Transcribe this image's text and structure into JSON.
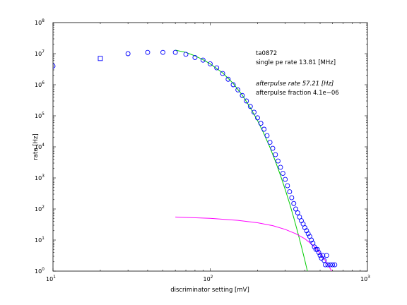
{
  "chart_data": {
    "type": "scatter",
    "title": "",
    "xlabel": "discriminator setting [mV]",
    "ylabel": "rate [Hz]",
    "x_scale": "log",
    "y_scale": "log",
    "xlim": [
      10,
      1000
    ],
    "ylim": [
      1,
      100000000
    ],
    "grid": false,
    "x_ticks": [
      {
        "base": "10",
        "exp": "1",
        "value": 10
      },
      {
        "base": "10",
        "exp": "2",
        "value": 100
      },
      {
        "base": "10",
        "exp": "3",
        "value": 1000
      }
    ],
    "y_ticks": [
      {
        "base": "10",
        "exp": "0",
        "value": 1
      },
      {
        "base": "10",
        "exp": "1",
        "value": 10
      },
      {
        "base": "10",
        "exp": "2",
        "value": 100
      },
      {
        "base": "10",
        "exp": "3",
        "value": 1000
      },
      {
        "base": "10",
        "exp": "4",
        "value": 10000
      },
      {
        "base": "10",
        "exp": "5",
        "value": 100000
      },
      {
        "base": "10",
        "exp": "6",
        "value": 1000000
      },
      {
        "base": "10",
        "exp": "7",
        "value": 10000000
      },
      {
        "base": "10",
        "exp": "8",
        "value": 100000000
      }
    ],
    "annotations": [
      {
        "text": "ta0872",
        "italic": false
      },
      {
        "text": "single pe rate 13.81 [MHz]",
        "italic": false
      },
      {
        "text": "afterpulse rate 57.21 [Hz]",
        "italic": true
      },
      {
        "text": "afterpulse fraction 4.1e−06",
        "italic": false
      }
    ],
    "series": [
      {
        "marker": "circle",
        "color": "#0000ff",
        "points": [
          [
            10,
            4000000
          ],
          [
            30,
            10000000
          ],
          [
            40,
            11000000
          ],
          [
            50,
            11000000
          ],
          [
            60,
            11000000
          ],
          [
            70,
            9500000
          ],
          [
            80,
            7500000
          ],
          [
            90,
            6200000
          ],
          [
            100,
            4700000
          ],
          [
            110,
            3500000
          ],
          [
            120,
            2300000
          ],
          [
            130,
            1500000
          ],
          [
            140,
            1000000
          ],
          [
            150,
            680000
          ],
          [
            160,
            450000
          ],
          [
            170,
            300000
          ],
          [
            180,
            200000
          ],
          [
            190,
            130000
          ],
          [
            200,
            86000
          ],
          [
            210,
            57000
          ],
          [
            220,
            37000
          ],
          [
            230,
            23000
          ],
          [
            240,
            14000
          ],
          [
            250,
            9000
          ],
          [
            260,
            5600
          ],
          [
            270,
            3500
          ],
          [
            280,
            2200
          ],
          [
            290,
            1400
          ],
          [
            300,
            900
          ],
          [
            310,
            560
          ],
          [
            320,
            360
          ],
          [
            330,
            230
          ],
          [
            340,
            150
          ],
          [
            350,
            100
          ],
          [
            360,
            75
          ],
          [
            370,
            55
          ],
          [
            380,
            42
          ],
          [
            390,
            33
          ],
          [
            400,
            25
          ],
          [
            410,
            20
          ],
          [
            420,
            16
          ],
          [
            430,
            13
          ],
          [
            440,
            10
          ],
          [
            450,
            8
          ],
          [
            460,
            6
          ],
          [
            470,
            5
          ],
          [
            480,
            5
          ],
          [
            490,
            4
          ],
          [
            500,
            3.2
          ],
          [
            510,
            2.6
          ],
          [
            520,
            3.2
          ],
          [
            530,
            2.2
          ],
          [
            540,
            1.6
          ],
          [
            550,
            3.2
          ],
          [
            560,
            1.6
          ],
          [
            580,
            1.6
          ],
          [
            600,
            1.6
          ],
          [
            620,
            1.6
          ]
        ]
      },
      {
        "marker": "square",
        "color": "#0000ff",
        "points": [
          [
            20,
            7000000
          ]
        ]
      },
      {
        "marker": "line",
        "color": "#00cc00",
        "points": [
          [
            60,
            13000000
          ],
          [
            70,
            11000000
          ],
          [
            80,
            8500000
          ],
          [
            90,
            6400000
          ],
          [
            100,
            4700000
          ],
          [
            120,
            2400000
          ],
          [
            140,
            1100000
          ],
          [
            160,
            460000
          ],
          [
            180,
            180000
          ],
          [
            200,
            70000
          ],
          [
            220,
            26000
          ],
          [
            240,
            9500
          ],
          [
            260,
            3400
          ],
          [
            280,
            1200
          ],
          [
            300,
            420
          ],
          [
            320,
            150
          ],
          [
            340,
            52
          ],
          [
            360,
            18
          ],
          [
            380,
            6.3
          ],
          [
            400,
            2.2
          ],
          [
            415,
            1
          ],
          [
            430,
            0.45
          ]
        ]
      },
      {
        "marker": "line",
        "color": "#ff00ff",
        "points": [
          [
            60,
            55
          ],
          [
            100,
            50
          ],
          [
            150,
            43
          ],
          [
            200,
            36
          ],
          [
            250,
            29
          ],
          [
            300,
            22
          ],
          [
            350,
            16
          ],
          [
            400,
            11
          ],
          [
            450,
            6.8
          ],
          [
            500,
            3.8
          ],
          [
            550,
            1.9
          ],
          [
            600,
            0.9
          ]
        ]
      }
    ]
  }
}
